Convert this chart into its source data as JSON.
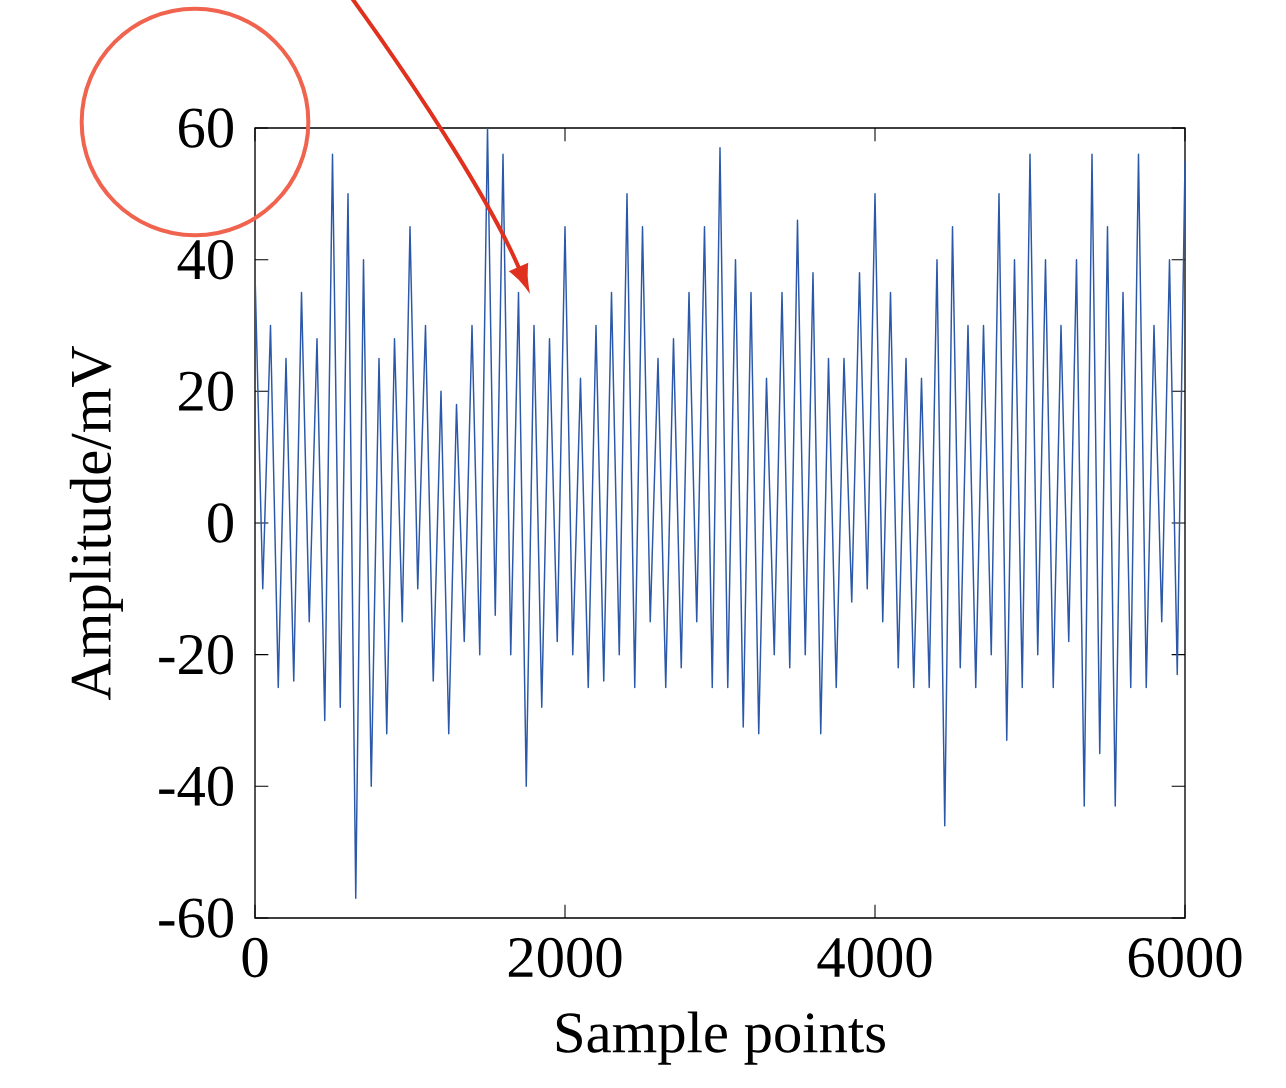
{
  "chart_data": {
    "type": "line",
    "xlabel": "Sample points",
    "ylabel": "Amplitude/mV",
    "xlim": [
      0,
      6000
    ],
    "ylim": [
      -60,
      60
    ],
    "xticks": [
      0,
      2000,
      4000,
      6000
    ],
    "yticks": [
      -60,
      -40,
      -20,
      0,
      20,
      40,
      60
    ],
    "series": [
      {
        "color": "#2b58a8",
        "x": [
          0,
          50,
          100,
          150,
          200,
          250,
          300,
          350,
          400,
          450,
          500,
          550,
          600,
          650,
          700,
          750,
          800,
          850,
          900,
          950,
          1000,
          1050,
          1100,
          1150,
          1200,
          1250,
          1300,
          1350,
          1400,
          1450,
          1500,
          1550,
          1600,
          1650,
          1700,
          1750,
          1800,
          1850,
          1900,
          1950,
          2000,
          2050,
          2100,
          2150,
          2200,
          2250,
          2300,
          2350,
          2400,
          2450,
          2500,
          2550,
          2600,
          2650,
          2700,
          2750,
          2800,
          2850,
          2900,
          2950,
          3000,
          3050,
          3100,
          3150,
          3200,
          3250,
          3300,
          3350,
          3400,
          3450,
          3500,
          3550,
          3600,
          3650,
          3700,
          3750,
          3800,
          3850,
          3900,
          3950,
          4000,
          4050,
          4100,
          4150,
          4200,
          4250,
          4300,
          4350,
          4400,
          4450,
          4500,
          4550,
          4600,
          4650,
          4700,
          4750,
          4800,
          4850,
          4900,
          4950,
          5000,
          5050,
          5100,
          5150,
          5200,
          5250,
          5300,
          5350,
          5400,
          5450,
          5500,
          5550,
          5600,
          5650,
          5700,
          5750,
          5800,
          5850,
          5900,
          5950,
          6000
        ],
        "values": [
          38,
          -10,
          30,
          -25,
          25,
          -24,
          35,
          -15,
          28,
          -30,
          56,
          -28,
          50,
          -57,
          40,
          -40,
          25,
          -32,
          28,
          -15,
          45,
          -10,
          30,
          -24,
          20,
          -32,
          18,
          -18,
          30,
          -20,
          60,
          -14,
          56,
          -20,
          35,
          -40,
          30,
          -28,
          28,
          -18,
          45,
          -20,
          22,
          -25,
          30,
          -24,
          35,
          -20,
          50,
          -25,
          45,
          -15,
          25,
          -25,
          28,
          -22,
          35,
          -15,
          45,
          -25,
          57,
          -25,
          40,
          -31,
          35,
          -32,
          22,
          -20,
          35,
          -22,
          46,
          -20,
          38,
          -32,
          25,
          -25,
          25,
          -12,
          38,
          -10,
          50,
          -15,
          35,
          -22,
          25,
          -25,
          22,
          -25,
          40,
          -46,
          45,
          -22,
          30,
          -25,
          30,
          -20,
          50,
          -33,
          40,
          -25,
          56,
          -20,
          40,
          -25,
          30,
          -18,
          40,
          -43,
          56,
          -35,
          45,
          -43,
          35,
          -25,
          56,
          -25,
          30,
          -15,
          40,
          -23,
          55
        ]
      }
    ]
  }
}
